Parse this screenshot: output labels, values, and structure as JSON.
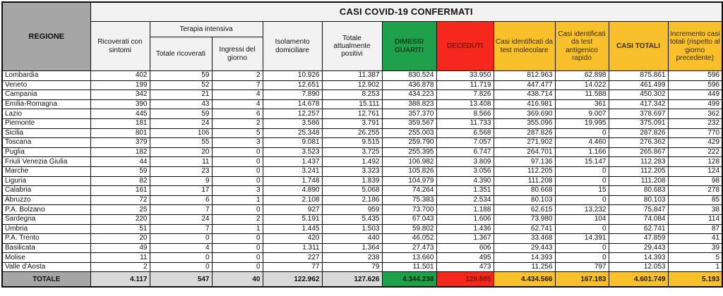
{
  "chart_data": {
    "type": "table",
    "title": "CASI COVID-19 CONFERMATI",
    "header": {
      "regione": "REGIONE",
      "ricoverati": "Ricoverati con sintomi",
      "terapia_intensiva": "Terapia intensiva",
      "totale_ricoverati": "Totale ricoverati",
      "ingressi": "Ingressi del giorno",
      "isolamento": "Isolamento domiciliare",
      "attualmente_positivi": "Totale attualmente positivi",
      "dimessi": "DIMESSI GUARITI",
      "deceduti": "DECEDUTI",
      "molecolare": "Casi identificati da test molecolare",
      "antigenico": "Casi identificati da test antigenico rapido",
      "casi_totali": "CASI TOTALI",
      "incremento": "Incremento casi totali (rispetto al giorno precedente)"
    },
    "column_keys": [
      "ricoverati-con-sintomi",
      "ti-totale-ricoverati",
      "ti-ingressi-del-giorno",
      "isolamento-domiciliare",
      "totale-attualmente-positivi",
      "dimessi-guariti",
      "deceduti",
      "test-molecolare",
      "test-antigenico-rapido",
      "casi-totali",
      "incremento-casi-totali"
    ],
    "rows": [
      {
        "regione": "Lombardia",
        "values": [
          "402",
          "59",
          "2",
          "10.926",
          "11.387",
          "830.524",
          "33.950",
          "812.963",
          "62.898",
          "875.861",
          "596"
        ]
      },
      {
        "regione": "Veneto",
        "values": [
          "199",
          "52",
          "7",
          "12.651",
          "12.902",
          "436.878",
          "11.719",
          "447.477",
          "14.022",
          "461.499",
          "596"
        ]
      },
      {
        "regione": "Campania",
        "values": [
          "342",
          "21",
          "4",
          "7.890",
          "8.253",
          "434.223",
          "7.826",
          "438.714",
          "11.588",
          "450.302",
          "449"
        ]
      },
      {
        "regione": "Emilia-Romagna",
        "values": [
          "390",
          "43",
          "4",
          "14.678",
          "15.111",
          "388.823",
          "13.408",
          "416.981",
          "361",
          "417.342",
          "499"
        ]
      },
      {
        "regione": "Lazio",
        "values": [
          "445",
          "59",
          "6",
          "12.257",
          "12.761",
          "357.370",
          "8.566",
          "369.690",
          "9.007",
          "378.697",
          "362"
        ]
      },
      {
        "regione": "Piemonte",
        "values": [
          "181",
          "24",
          "2",
          "3.586",
          "3.791",
          "359.567",
          "11.733",
          "355.096",
          "19.995",
          "375.091",
          "232"
        ]
      },
      {
        "regione": "Sicilia",
        "values": [
          "801",
          "106",
          "5",
          "25.348",
          "26.255",
          "255.003",
          "6.568",
          "287.826",
          "0",
          "287.826",
          "770"
        ]
      },
      {
        "regione": "Toscana",
        "values": [
          "379",
          "55",
          "3",
          "9.081",
          "9.515",
          "259.790",
          "7.057",
          "271.902",
          "4.460",
          "276.362",
          "429"
        ]
      },
      {
        "regione": "Puglia",
        "values": [
          "182",
          "20",
          "0",
          "3.523",
          "3.725",
          "255.395",
          "6.747",
          "264.701",
          "1.166",
          "265.867",
          "222"
        ]
      },
      {
        "regione": "Friuli Venezia Giulia",
        "values": [
          "44",
          "11",
          "0",
          "1.437",
          "1.492",
          "106.982",
          "3.809",
          "97.136",
          "15.147",
          "112.283",
          "128"
        ]
      },
      {
        "regione": "Marche",
        "values": [
          "59",
          "23",
          "0",
          "3.241",
          "3.323",
          "105.826",
          "3.056",
          "112.205",
          "0",
          "112.205",
          "124"
        ]
      },
      {
        "regione": "Liguria",
        "values": [
          "82",
          "9",
          "0",
          "1.748",
          "1.839",
          "104.979",
          "4.390",
          "111.208",
          "0",
          "111.208",
          "98"
        ]
      },
      {
        "regione": "Calabria",
        "values": [
          "161",
          "17",
          "3",
          "4.890",
          "5.068",
          "74.264",
          "1.351",
          "80.668",
          "15",
          "80.683",
          "278"
        ]
      },
      {
        "regione": "Abruzzo",
        "values": [
          "72",
          "6",
          "1",
          "2.108",
          "2.186",
          "75.383",
          "2.534",
          "80.103",
          "0",
          "80.103",
          "85"
        ]
      },
      {
        "regione": "P.A. Bolzano",
        "values": [
          "25",
          "7",
          "0",
          "927",
          "959",
          "73.700",
          "1.188",
          "62.615",
          "13.232",
          "75.847",
          "38"
        ]
      },
      {
        "regione": "Sardegna",
        "values": [
          "220",
          "24",
          "2",
          "5.191",
          "5.435",
          "67.043",
          "1.606",
          "73.980",
          "104",
          "74.084",
          "114"
        ]
      },
      {
        "regione": "Umbria",
        "values": [
          "51",
          "7",
          "1",
          "1.445",
          "1.503",
          "59.802",
          "1.436",
          "62.741",
          "0",
          "62.741",
          "87"
        ]
      },
      {
        "regione": "P.A. Trento",
        "values": [
          "20",
          "0",
          "0",
          "420",
          "440",
          "46.052",
          "1.367",
          "33.468",
          "14.391",
          "47.859",
          "41"
        ]
      },
      {
        "regione": "Basilicata",
        "values": [
          "49",
          "4",
          "0",
          "1.311",
          "1.364",
          "27.473",
          "606",
          "29.443",
          "0",
          "29.443",
          "39"
        ]
      },
      {
        "regione": "Molise",
        "values": [
          "11",
          "0",
          "0",
          "227",
          "238",
          "13.660",
          "495",
          "14.393",
          "0",
          "14.393",
          "5"
        ]
      },
      {
        "regione": "Valle d'Aosta",
        "values": [
          "2",
          "0",
          "0",
          "77",
          "79",
          "11.501",
          "473",
          "11.256",
          "797",
          "12.053",
          "1"
        ]
      }
    ],
    "total_row": {
      "label": "TOTALE",
      "values": [
        "4.117",
        "547",
        "40",
        "122.962",
        "127.626",
        "4.344.238",
        "129.885",
        "4.434.566",
        "167.183",
        "4.601.749",
        "5.193"
      ]
    }
  },
  "colors": {
    "header_gray": "#a6a6a6",
    "band_gray": "#f2f2f2",
    "green": "#1fa04a",
    "green_text": "#14451d",
    "red": "#f6281c",
    "red_text": "#801407",
    "gold": "#f8c12b",
    "gold_text": "#3c2a00",
    "total_gray": "#d9d9d9",
    "border": "#0d0d0d"
  }
}
